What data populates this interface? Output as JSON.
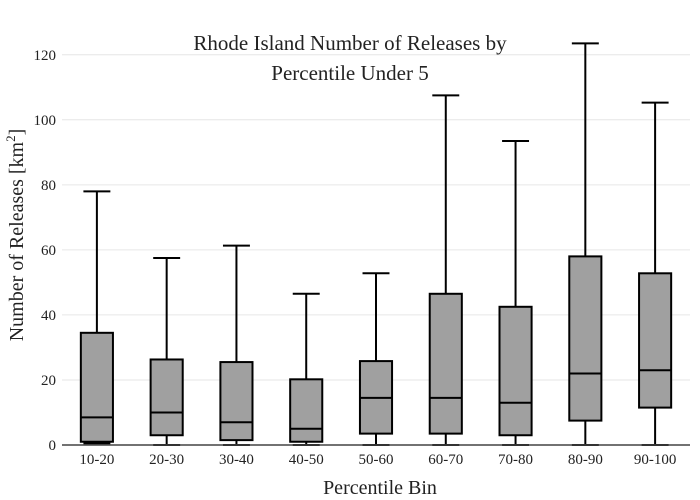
{
  "chart_data": {
    "type": "box",
    "title_lines": [
      "Rhode Island Number of Releases by",
      "Percentile Under 5"
    ],
    "xlabel": "Percentile Bin",
    "ylabel_main": "Number of Releases  [km",
    "ylabel_sup": "2",
    "ylabel_close": "]",
    "ylim": [
      0,
      127
    ],
    "yticks": [
      0,
      20,
      40,
      60,
      80,
      100,
      120
    ],
    "grid": true,
    "categories": [
      "10-20",
      "20-30",
      "30-40",
      "40-50",
      "50-60",
      "60-70",
      "70-80",
      "80-90",
      "90-100"
    ],
    "boxes": [
      {
        "min": 0.5,
        "q1": 1,
        "median": 8.5,
        "q3": 34.5,
        "max": 78
      },
      {
        "min": 0,
        "q1": 3,
        "median": 10,
        "q3": 26.3,
        "max": 57.5
      },
      {
        "min": 0,
        "q1": 1.5,
        "median": 7,
        "q3": 25.5,
        "max": 61.3
      },
      {
        "min": 0,
        "q1": 1,
        "median": 5,
        "q3": 20.2,
        "max": 46.5
      },
      {
        "min": 0,
        "q1": 3.5,
        "median": 14.5,
        "q3": 25.8,
        "max": 52.8
      },
      {
        "min": 0,
        "q1": 3.5,
        "median": 14.5,
        "q3": 46.5,
        "max": 107.5
      },
      {
        "min": 0,
        "q1": 3,
        "median": 13,
        "q3": 42.5,
        "max": 93.5
      },
      {
        "min": 0,
        "q1": 7.5,
        "median": 22,
        "q3": 58,
        "max": 123.5
      },
      {
        "min": 0,
        "q1": 11.5,
        "median": 23,
        "q3": 52.8,
        "max": 105.3
      }
    ],
    "box_color": "#a0a0a0"
  }
}
